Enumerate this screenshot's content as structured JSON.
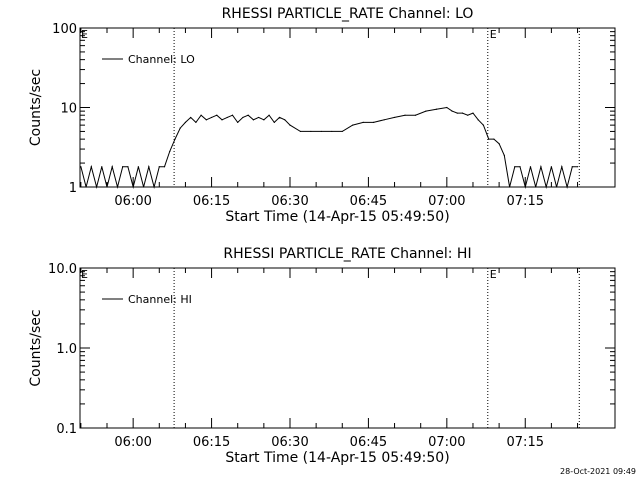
{
  "footer": {
    "timestamp": "28-Oct-2021 09:49"
  },
  "chart_data": [
    {
      "type": "line",
      "title": "RHESSI PARTICLE_RATE Channel: LO",
      "xlabel": "Start Time (14-Apr-15 05:49:50)",
      "ylabel": "Counts/sec",
      "y_scale": "log",
      "xlim": [
        "05:49:50",
        "07:32:10"
      ],
      "ylim": [
        1,
        100
      ],
      "x_ticks": [
        "06:00",
        "06:15",
        "06:30",
        "06:45",
        "07:00",
        "07:15"
      ],
      "y_ticks": [
        "1",
        "10",
        "100"
      ],
      "legend": {
        "entries": [
          "Channel: LO"
        ],
        "placement": "top-left"
      },
      "markers": [
        {
          "label": "",
          "time": "06:07:50"
        },
        {
          "label": "E",
          "time": "07:07:50"
        },
        {
          "label": "",
          "time": "07:25:20"
        }
      ],
      "edge_markers": [
        {
          "label": "E",
          "side": "left"
        }
      ],
      "series": [
        {
          "name": "Channel: LO",
          "x": [
            "05:50",
            "05:51",
            "05:52",
            "05:53",
            "05:54",
            "05:55",
            "05:56",
            "05:57",
            "05:58",
            "05:59",
            "06:00",
            "06:01",
            "06:02",
            "06:03",
            "06:04",
            "06:05",
            "06:06",
            "06:07",
            "06:08",
            "06:09",
            "06:10",
            "06:11",
            "06:12",
            "06:13",
            "06:14",
            "06:15",
            "06:16",
            "06:17",
            "06:18",
            "06:19",
            "06:20",
            "06:21",
            "06:22",
            "06:23",
            "06:24",
            "06:25",
            "06:26",
            "06:27",
            "06:28",
            "06:29",
            "06:30",
            "06:32",
            "06:34",
            "06:36",
            "06:38",
            "06:40",
            "06:42",
            "06:44",
            "06:46",
            "06:48",
            "06:50",
            "06:52",
            "06:54",
            "06:56",
            "06:58",
            "07:00",
            "07:01",
            "07:02",
            "07:03",
            "07:04",
            "07:05",
            "07:06",
            "07:07",
            "07:08",
            "07:09",
            "07:10",
            "07:11",
            "07:12",
            "07:13",
            "07:14",
            "07:15",
            "07:16",
            "07:17",
            "07:18",
            "07:19",
            "07:20",
            "07:21",
            "07:22",
            "07:23",
            "07:24",
            "07:25"
          ],
          "y": [
            1.8,
            1,
            1.8,
            1,
            1.8,
            1,
            1.8,
            1,
            1.8,
            1.8,
            1,
            1.8,
            1,
            1.8,
            1,
            1.8,
            1.8,
            2.8,
            4,
            5.5,
            6.5,
            7.5,
            6.5,
            8,
            7,
            7.5,
            8,
            7,
            7.5,
            8,
            6.5,
            7.5,
            8,
            7,
            7.5,
            7,
            8,
            6.5,
            7.5,
            7,
            6,
            5,
            5,
            5,
            5,
            5,
            6,
            6.5,
            6.5,
            7,
            7.5,
            8,
            8,
            9,
            9.5,
            10,
            9,
            8.5,
            8.5,
            8,
            8.5,
            7,
            6,
            4,
            4,
            3.5,
            2.5,
            1,
            1.8,
            1.8,
            1,
            1.8,
            1,
            1.8,
            1,
            1.8,
            1,
            1.8,
            1,
            1.8,
            1.8
          ]
        }
      ]
    },
    {
      "type": "line",
      "title": "RHESSI PARTICLE_RATE Channel: HI",
      "xlabel": "Start Time (14-Apr-15 05:49:50)",
      "ylabel": "Counts/sec",
      "y_scale": "log",
      "xlim": [
        "05:49:50",
        "07:32:10"
      ],
      "ylim": [
        0.1,
        10
      ],
      "x_ticks": [
        "06:00",
        "06:15",
        "06:30",
        "06:45",
        "07:00",
        "07:15"
      ],
      "y_ticks": [
        "0.1",
        "1.0",
        "10.0"
      ],
      "legend": {
        "entries": [
          "Channel: HI"
        ],
        "placement": "top-left"
      },
      "markers": [
        {
          "label": "",
          "time": "06:07:50"
        },
        {
          "label": "E",
          "time": "07:07:50"
        },
        {
          "label": "",
          "time": "07:25:20"
        }
      ],
      "edge_markers": [
        {
          "label": "E",
          "side": "left"
        }
      ],
      "series": [
        {
          "name": "Channel: HI",
          "x": [],
          "y": []
        }
      ]
    }
  ]
}
